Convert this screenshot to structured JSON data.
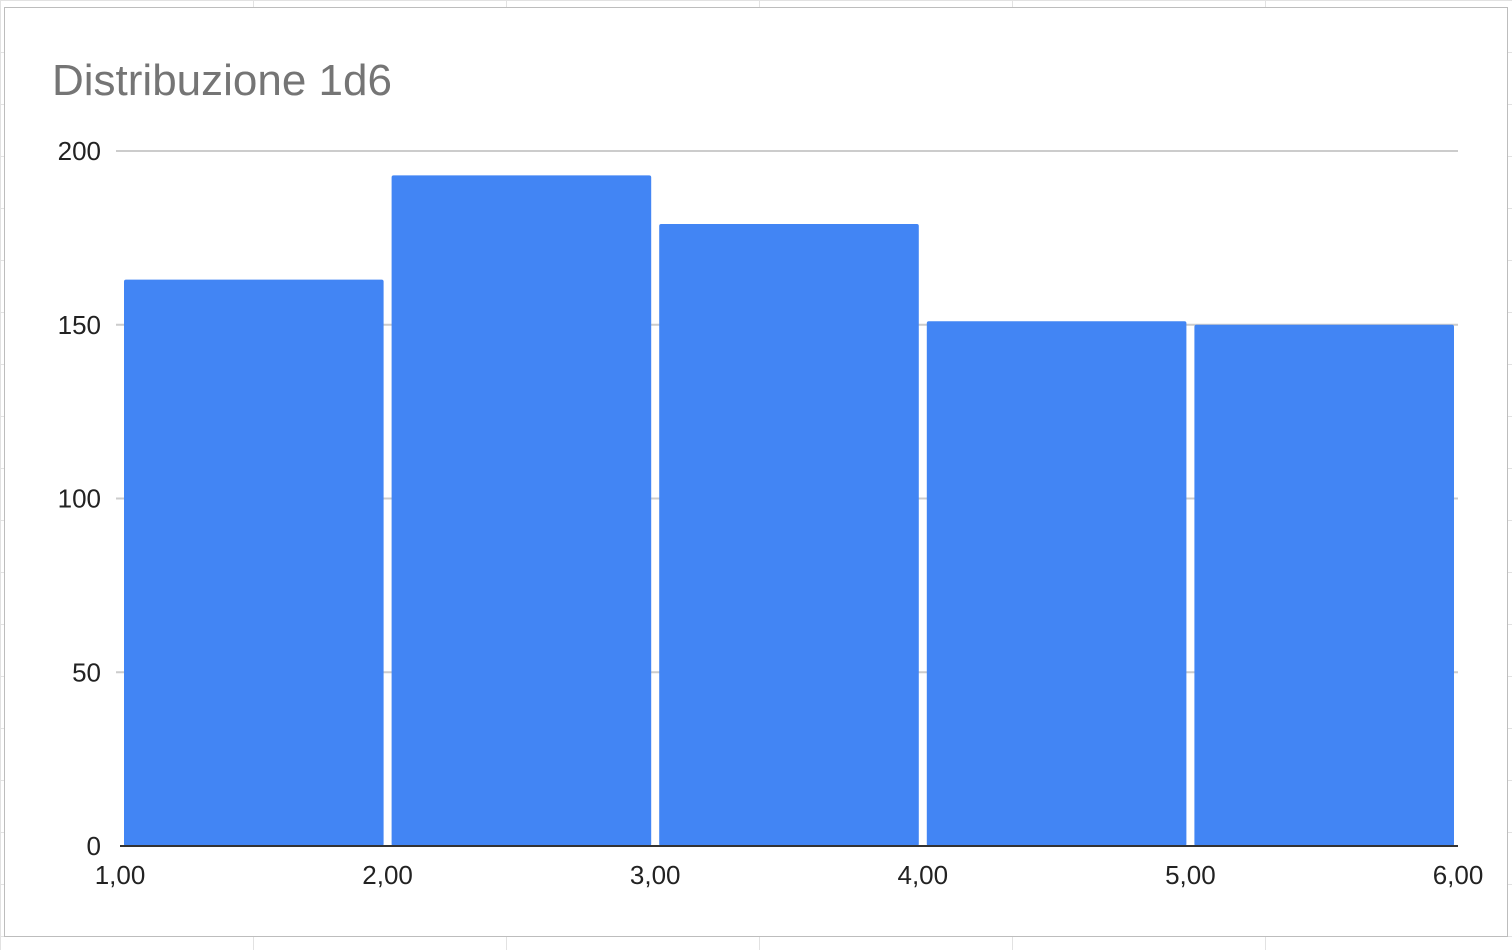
{
  "chart_data": {
    "type": "bar",
    "title": "Distribuzione 1d6",
    "xlabel": "",
    "ylabel": "",
    "bins": [
      {
        "from": 1,
        "to": 2,
        "value": 163
      },
      {
        "from": 2,
        "to": 3,
        "value": 193
      },
      {
        "from": 3,
        "to": 4,
        "value": 179
      },
      {
        "from": 4,
        "to": 5,
        "value": 151
      },
      {
        "from": 5,
        "to": 6,
        "value": 150
      }
    ],
    "xlim": [
      1,
      6
    ],
    "ylim": [
      0,
      200
    ],
    "x_ticks": [
      "1,00",
      "2,00",
      "3,00",
      "4,00",
      "5,00",
      "6,00"
    ],
    "y_ticks": [
      "0",
      "50",
      "100",
      "150",
      "200"
    ],
    "grid": true,
    "legend": "none",
    "colors": {
      "bar": "#4285f4",
      "gridline": "#cccccc",
      "axis": "#333333",
      "title": "#757575"
    }
  }
}
